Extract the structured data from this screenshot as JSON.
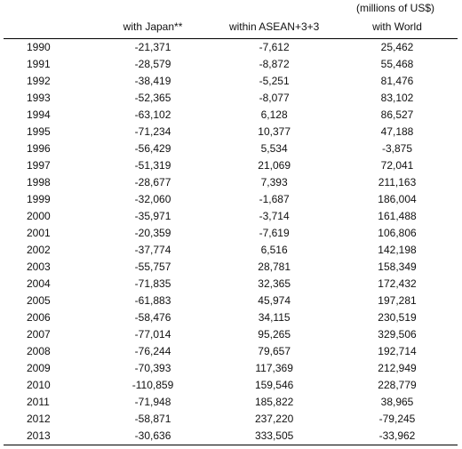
{
  "unit_note": "(millions of US$)",
  "headers": [
    "",
    "with Japan**",
    "within ASEAN+3+3",
    "with World"
  ],
  "rows": [
    [
      "1990",
      "-21,371",
      "-7,612",
      "25,462"
    ],
    [
      "1991",
      "-28,579",
      "-8,872",
      "55,468"
    ],
    [
      "1992",
      "-38,419",
      "-5,251",
      "81,476"
    ],
    [
      "1993",
      "-52,365",
      "-8,077",
      "83,102"
    ],
    [
      "1994",
      "-63,102",
      "6,128",
      "86,527"
    ],
    [
      "1995",
      "-71,234",
      "10,377",
      "47,188"
    ],
    [
      "1996",
      "-56,429",
      "5,534",
      "-3,875"
    ],
    [
      "1997",
      "-51,319",
      "21,069",
      "72,041"
    ],
    [
      "1998",
      "-28,677",
      "7,393",
      "211,163"
    ],
    [
      "1999",
      "-32,060",
      "-1,687",
      "186,004"
    ],
    [
      "2000",
      "-35,971",
      "-3,714",
      "161,488"
    ],
    [
      "2001",
      "-20,359",
      "-7,619",
      "106,806"
    ],
    [
      "2002",
      "-37,774",
      "6,516",
      "142,198"
    ],
    [
      "2003",
      "-55,757",
      "28,781",
      "158,349"
    ],
    [
      "2004",
      "-71,835",
      "32,365",
      "172,432"
    ],
    [
      "2005",
      "-61,883",
      "45,974",
      "197,281"
    ],
    [
      "2006",
      "-58,476",
      "34,115",
      "230,519"
    ],
    [
      "2007",
      "-77,014",
      "95,265",
      "329,506"
    ],
    [
      "2008",
      "-76,244",
      "79,657",
      "192,714"
    ],
    [
      "2009",
      "-70,393",
      "117,369",
      "212,949"
    ],
    [
      "2010",
      "-110,859",
      "159,546",
      "228,779"
    ],
    [
      "2011",
      "-71,948",
      "185,822",
      "38,965"
    ],
    [
      "2012",
      "-58,871",
      "237,220",
      "-79,245"
    ],
    [
      "2013",
      "-30,636",
      "333,505",
      "-33,962"
    ]
  ]
}
